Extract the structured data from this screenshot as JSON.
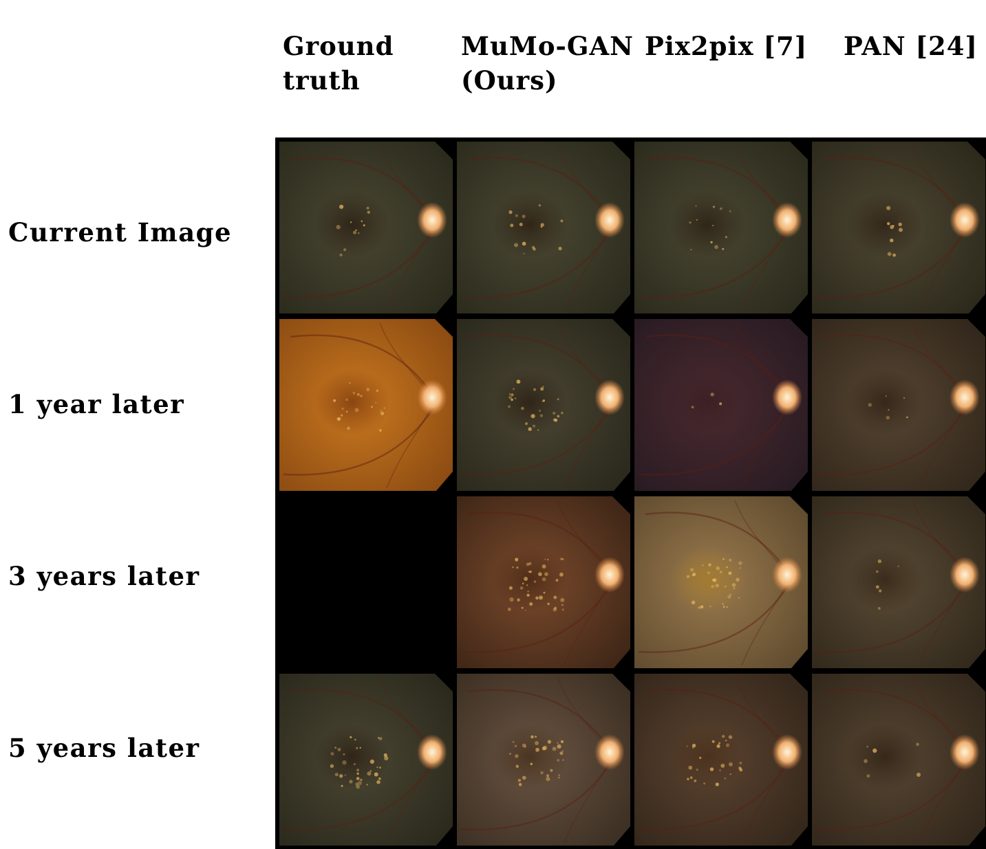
{
  "columns": [
    {
      "label": "Ground\ntruth"
    },
    {
      "label": "MuMo-GAN\n(Ours)"
    },
    {
      "label": "Pix2pix [7]"
    },
    {
      "label": "PAN [24]"
    }
  ],
  "rows": [
    {
      "label": "Current Image"
    },
    {
      "label": "1 year later"
    },
    {
      "label": "3 years later"
    },
    {
      "label": "5 years later"
    }
  ],
  "cells": [
    [
      {
        "tone": "#4a4632",
        "tone_edge": "#2a2a1c",
        "macula": "#2f2518",
        "drusen": 0.2,
        "empty": false
      },
      {
        "tone": "#4b4733",
        "tone_edge": "#2a2a1c",
        "macula": "#302618",
        "drusen": 0.25,
        "empty": false
      },
      {
        "tone": "#4a4632",
        "tone_edge": "#2a2a1c",
        "macula": "#2f2518",
        "drusen": 0.2,
        "empty": false
      },
      {
        "tone": "#4d4632",
        "tone_edge": "#2b281b",
        "macula": "#33271a",
        "drusen": 0.15,
        "empty": false
      }
    ],
    [
      {
        "tone": "#c9781f",
        "tone_edge": "#8a4a12",
        "macula": "#8a4512",
        "drusen": 0.35,
        "empty": false
      },
      {
        "tone": "#4b4533",
        "tone_edge": "#29281b",
        "macula": "#2f2518",
        "drusen": 0.45,
        "empty": false
      },
      {
        "tone": "#4a2a2f",
        "tone_edge": "#271a22",
        "macula": "#3a2024",
        "drusen": 0.05,
        "empty": false
      },
      {
        "tone": "#574532",
        "tone_edge": "#30261a",
        "macula": "#35271a",
        "drusen": 0.1,
        "empty": false
      }
    ],
    [
      {
        "tone": "#000000",
        "tone_edge": "#000000",
        "macula": "#000000",
        "drusen": 0,
        "empty": true
      },
      {
        "tone": "#7a4a2c",
        "tone_edge": "#3d2516",
        "macula": "#4e2c18",
        "drusen": 0.7,
        "empty": false
      },
      {
        "tone": "#9a7a4e",
        "tone_edge": "#5e4a2e",
        "macula": "#a27a30",
        "drusen": 0.55,
        "empty": false
      },
      {
        "tone": "#5a4a35",
        "tone_edge": "#30281b",
        "macula": "#3a2b1c",
        "drusen": 0.1,
        "empty": false
      }
    ],
    [
      {
        "tone": "#4b4633",
        "tone_edge": "#29281b",
        "macula": "#2f2518",
        "drusen": 0.6,
        "empty": false
      },
      {
        "tone": "#6a5442",
        "tone_edge": "#3a2e22",
        "macula": "#4a3422",
        "drusen": 0.55,
        "empty": false
      },
      {
        "tone": "#5c4330",
        "tone_edge": "#32261a",
        "macula": "#4a321d",
        "drusen": 0.45,
        "empty": false
      },
      {
        "tone": "#574532",
        "tone_edge": "#30261a",
        "macula": "#35271a",
        "drusen": 0.1,
        "empty": false
      }
    ]
  ]
}
